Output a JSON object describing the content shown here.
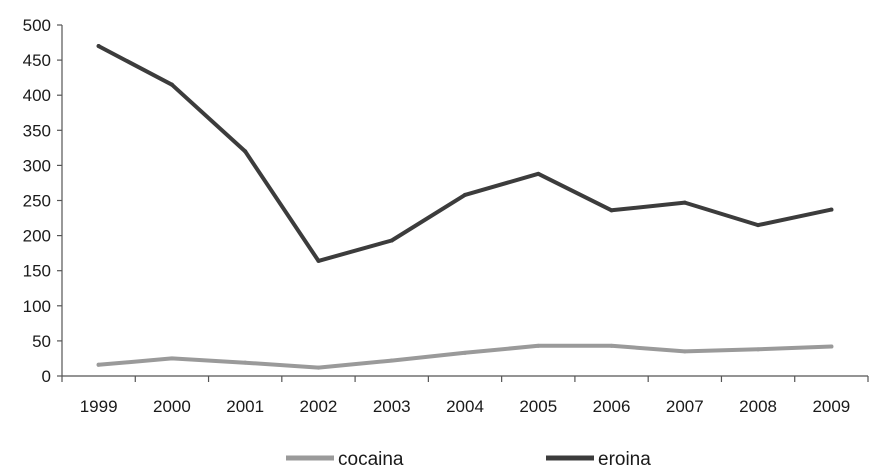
{
  "chart_data": {
    "type": "line",
    "title": "",
    "xlabel": "",
    "ylabel": "",
    "categories": [
      "1999",
      "2000",
      "2001",
      "2002",
      "2003",
      "2004",
      "2005",
      "2006",
      "2007",
      "2008",
      "2009"
    ],
    "ylim": [
      0,
      500
    ],
    "yticks": [
      "0",
      "50",
      "100",
      "150",
      "200",
      "250",
      "300",
      "350",
      "400",
      "450",
      "500"
    ],
    "grid": false,
    "legend_position": "bottom",
    "series": [
      {
        "name": "cocaina",
        "color": "#9a9a9a",
        "values": [
          16,
          25,
          19,
          12,
          22,
          33,
          43,
          43,
          35,
          38,
          42
        ]
      },
      {
        "name": "eroina",
        "color": "#3c3c3c",
        "values": [
          470,
          415,
          320,
          164,
          193,
          258,
          288,
          236,
          247,
          215,
          237
        ]
      }
    ]
  }
}
